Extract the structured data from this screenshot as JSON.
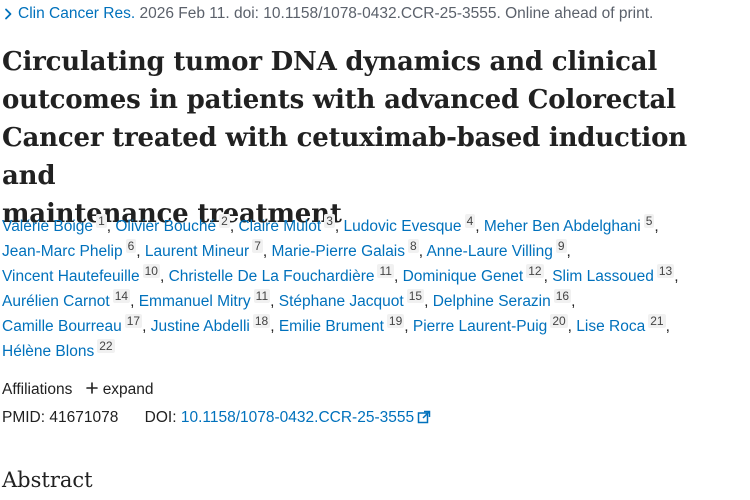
{
  "citation": {
    "journal": "Clin Cancer Res.",
    "details": " 2026 Feb 11. doi: 10.1158/1078-0432.CCR-25-3555. Online ahead of print."
  },
  "title": {
    "lines": [
      "Circulating tumor DNA dynamics and clinical",
      "outcomes in patients with advanced Colorectal",
      "Cancer treated with cetuximab-based induction and",
      "maintenance treatment"
    ]
  },
  "authors": [
    {
      "name": "Valérie Boige",
      "affil": "1"
    },
    {
      "name": "Olivier Bouché",
      "affil": "2"
    },
    {
      "name": "Claire Mulot",
      "affil": "3"
    },
    {
      "name": "Ludovic Evesque",
      "affil": "4"
    },
    {
      "name": "Meher Ben Abdelghani",
      "affil": "5"
    },
    {
      "name": "Jean-Marc Phelip",
      "affil": "6"
    },
    {
      "name": "Laurent Mineur",
      "affil": "7"
    },
    {
      "name": "Marie-Pierre Galais",
      "affil": "8"
    },
    {
      "name": "Anne-Laure Villing",
      "affil": "9"
    },
    {
      "name": "Vincent Hautefeuille",
      "affil": "10"
    },
    {
      "name": "Christelle De La Fouchardière",
      "affil": "11"
    },
    {
      "name": "Dominique Genet",
      "affil": "12"
    },
    {
      "name": "Slim Lassoued",
      "affil": "13"
    },
    {
      "name": "Aurélien Carnot",
      "affil": "14"
    },
    {
      "name": "Emmanuel Mitry",
      "affil": "11"
    },
    {
      "name": "Stéphane Jacquot",
      "affil": "15"
    },
    {
      "name": "Delphine Serazin",
      "affil": "16"
    },
    {
      "name": "Camille Bourreau",
      "affil": "17"
    },
    {
      "name": "Justine Abdelli",
      "affil": "18"
    },
    {
      "name": "Emilie Brument",
      "affil": "19"
    },
    {
      "name": "Pierre Laurent-Puig",
      "affil": "20"
    },
    {
      "name": "Lise Roca",
      "affil": "21"
    },
    {
      "name": "Hélène Blons",
      "affil": "22"
    }
  ],
  "affiliations": {
    "label": "Affiliations",
    "expand_label": "expand"
  },
  "ids": {
    "pmid_label": "PMID:",
    "pmid": "41671078",
    "doi_label": "DOI:",
    "doi": "10.1158/1078-0432.CCR-25-3555"
  },
  "abstract": {
    "heading": "Abstract"
  },
  "icons": {
    "citation": "chevron-right-icon",
    "expand": "plus-icon",
    "doi": "external-link-icon"
  },
  "colors": {
    "link": "#0071bc",
    "text": "#212121",
    "muted": "#5b616b"
  }
}
